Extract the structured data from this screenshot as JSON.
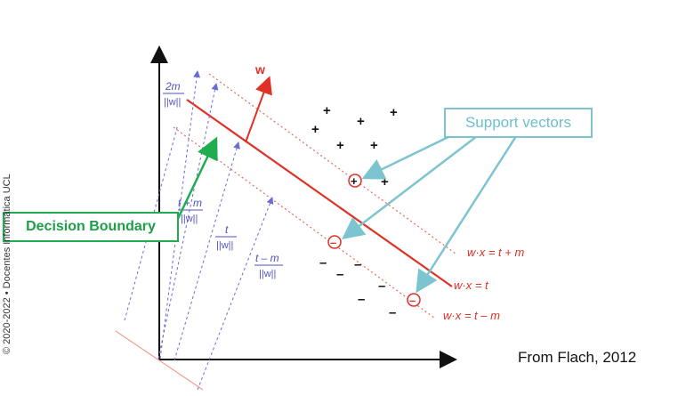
{
  "diagram": {
    "vector_label": "w",
    "margin_label_num": "2m",
    "margin_label_den": "||w||",
    "t_plus_m_num": "t + m",
    "t_plus_m_den": "||w||",
    "t_num": "t",
    "t_den": "||w||",
    "t_minus_m_num": "t – m",
    "t_minus_m_den": "||w||",
    "eq_upper": "w·x = t + m",
    "eq_middle": "w·x = t",
    "eq_lower": "w·x = t – m",
    "plus_symbol": "+",
    "minus_symbol": "–",
    "colors": {
      "boundary": "#e03127",
      "margin": "#e36a5c",
      "distance": "#6a6ad8",
      "axes": "#111111"
    }
  },
  "callouts": {
    "support_vectors": "Support vectors",
    "decision_boundary": "Decision Boundary"
  },
  "source_note": "From Flach, 2012",
  "side_credit": "© 2020-2022 • Docentes Informática UCL"
}
